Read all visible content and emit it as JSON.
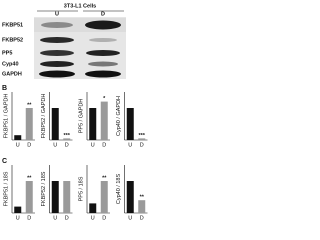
{
  "blot": {
    "title": "3T3-L1 Cells",
    "lanes": [
      "U",
      "D"
    ],
    "proteins": [
      "FKBP51",
      "FKBP52",
      "PP5",
      "Cyp40",
      "GAPDH"
    ]
  },
  "panel_labels": [
    "B",
    "C"
  ],
  "chart_data": [
    {
      "type": "bar",
      "panel": "B",
      "ylabel": "FKBP51 / GAPDH",
      "categories": [
        "U",
        "D"
      ],
      "values": [
        0.15,
        1.0
      ],
      "colors": [
        "#111111",
        "#9a9a9a"
      ],
      "significance": [
        null,
        "**"
      ],
      "ylim": [
        0,
        1.5
      ]
    },
    {
      "type": "bar",
      "panel": "B",
      "ylabel": "FKBP52 / GAPDH",
      "categories": [
        "U",
        "D"
      ],
      "values": [
        1.0,
        0.05
      ],
      "colors": [
        "#111111",
        "#9a9a9a"
      ],
      "significance": [
        null,
        "***"
      ],
      "ylim": [
        0,
        1.5
      ]
    },
    {
      "type": "bar",
      "panel": "B",
      "ylabel": "PP5 / GAPDH",
      "categories": [
        "U",
        "D"
      ],
      "values": [
        1.0,
        1.2
      ],
      "colors": [
        "#111111",
        "#9a9a9a"
      ],
      "significance": [
        null,
        "*"
      ],
      "ylim": [
        0,
        1.5
      ]
    },
    {
      "type": "bar",
      "panel": "B",
      "ylabel": "Cyp40 / GAPDH",
      "categories": [
        "U",
        "D"
      ],
      "values": [
        1.0,
        0.05
      ],
      "colors": [
        "#111111",
        "#9a9a9a"
      ],
      "significance": [
        null,
        "***"
      ],
      "ylim": [
        0,
        1.5
      ]
    },
    {
      "type": "bar",
      "panel": "C",
      "ylabel": "FKBP51 / 18S",
      "categories": [
        "U",
        "D"
      ],
      "values": [
        0.2,
        1.0
      ],
      "colors": [
        "#111111",
        "#9a9a9a"
      ],
      "significance": [
        null,
        "**"
      ],
      "ylim": [
        0,
        1.5
      ]
    },
    {
      "type": "bar",
      "panel": "C",
      "ylabel": "FKBP52 / 18S",
      "categories": [
        "U",
        "D"
      ],
      "values": [
        1.0,
        1.0
      ],
      "colors": [
        "#111111",
        "#9a9a9a"
      ],
      "significance": [
        null,
        null
      ],
      "ylim": [
        0,
        1.5
      ]
    },
    {
      "type": "bar",
      "panel": "C",
      "ylabel": "PP5 / 18S",
      "categories": [
        "U",
        "D"
      ],
      "values": [
        0.3,
        1.0
      ],
      "colors": [
        "#111111",
        "#9a9a9a"
      ],
      "significance": [
        null,
        "**"
      ],
      "ylim": [
        0,
        1.5
      ]
    },
    {
      "type": "bar",
      "panel": "C",
      "ylabel": "Cyp40 / 18S",
      "categories": [
        "U",
        "D"
      ],
      "values": [
        1.0,
        0.4
      ],
      "colors": [
        "#111111",
        "#9a9a9a"
      ],
      "significance": [
        null,
        "**"
      ],
      "ylim": [
        0,
        1.5
      ]
    }
  ]
}
